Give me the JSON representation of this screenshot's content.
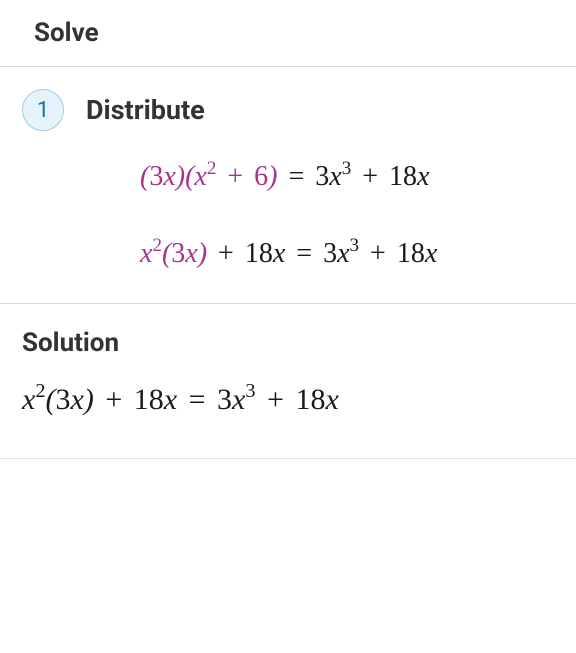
{
  "colors": {
    "background": "#ffffff",
    "text_primary": "#333333",
    "divider": "#d8d8d8",
    "badge_bg": "#e6f3fb",
    "badge_border": "#9ecde6",
    "badge_text": "#1a6fa3",
    "highlight": "#a8328f",
    "math_text": "#1a1a1a"
  },
  "typography": {
    "heading_fontsize": 26,
    "step_title_fontsize": 27,
    "math_fontsize": 28,
    "solution_math_fontsize": 30,
    "math_family": "Times New Roman"
  },
  "header": {
    "solve_label": "Solve"
  },
  "step": {
    "number": "1",
    "title": "Distribute",
    "lines": [
      {
        "highlight_html": "(<span class='num'>3</span>x)(x<sup>2</sup> <span class='op'>+</span> <span class='num'>6</span>)",
        "rest_html": " <span class='op'>=</span> <span class='num'>3</span>x<sup>3</sup> <span class='op'>+</span> <span class='num'>18</span>x"
      },
      {
        "highlight_html": "x<sup>2</sup>(<span class='num'>3</span>x)",
        "rest_html": " <span class='op'>+</span> <span class='num'>18</span>x <span class='op'>=</span> <span class='num'>3</span>x<sup>3</sup> <span class='op'>+</span> <span class='num'>18</span>x"
      }
    ]
  },
  "solution": {
    "title": "Solution",
    "line_html": "x<sup>2</sup>(<span class='num'>3</span>x) <span class='op'>+</span> <span class='num'>18</span>x <span class='op'>=</span> <span class='num'>3</span>x<sup>3</sup> <span class='op'>+</span> <span class='num'>18</span>x"
  }
}
